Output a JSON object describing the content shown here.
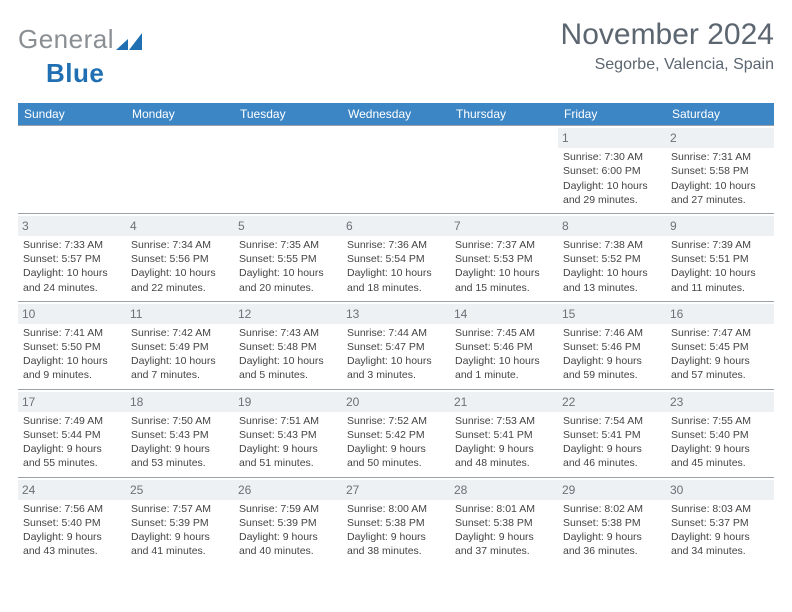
{
  "brand": {
    "part1": "General",
    "part2": "Blue",
    "color_gray": "#8a8f94",
    "color_blue": "#1f6fb2"
  },
  "title": {
    "month": "November 2024",
    "location": "Segorbe, Valencia, Spain"
  },
  "theme": {
    "header_bg": "#3d86c6",
    "header_text": "#ffffff",
    "daynum_bg": "#eef1f4",
    "rule": "#9aa3ab",
    "text": "#444444"
  },
  "weekdays": [
    "Sunday",
    "Monday",
    "Tuesday",
    "Wednesday",
    "Thursday",
    "Friday",
    "Saturday"
  ],
  "weeks": [
    [
      {
        "blank": true
      },
      {
        "blank": true
      },
      {
        "blank": true
      },
      {
        "blank": true
      },
      {
        "blank": true
      },
      {
        "n": "1",
        "sr": "Sunrise: 7:30 AM",
        "ss": "Sunset: 6:00 PM",
        "d1": "Daylight: 10 hours",
        "d2": "and 29 minutes."
      },
      {
        "n": "2",
        "sr": "Sunrise: 7:31 AM",
        "ss": "Sunset: 5:58 PM",
        "d1": "Daylight: 10 hours",
        "d2": "and 27 minutes."
      }
    ],
    [
      {
        "n": "3",
        "sr": "Sunrise: 7:33 AM",
        "ss": "Sunset: 5:57 PM",
        "d1": "Daylight: 10 hours",
        "d2": "and 24 minutes."
      },
      {
        "n": "4",
        "sr": "Sunrise: 7:34 AM",
        "ss": "Sunset: 5:56 PM",
        "d1": "Daylight: 10 hours",
        "d2": "and 22 minutes."
      },
      {
        "n": "5",
        "sr": "Sunrise: 7:35 AM",
        "ss": "Sunset: 5:55 PM",
        "d1": "Daylight: 10 hours",
        "d2": "and 20 minutes."
      },
      {
        "n": "6",
        "sr": "Sunrise: 7:36 AM",
        "ss": "Sunset: 5:54 PM",
        "d1": "Daylight: 10 hours",
        "d2": "and 18 minutes."
      },
      {
        "n": "7",
        "sr": "Sunrise: 7:37 AM",
        "ss": "Sunset: 5:53 PM",
        "d1": "Daylight: 10 hours",
        "d2": "and 15 minutes."
      },
      {
        "n": "8",
        "sr": "Sunrise: 7:38 AM",
        "ss": "Sunset: 5:52 PM",
        "d1": "Daylight: 10 hours",
        "d2": "and 13 minutes."
      },
      {
        "n": "9",
        "sr": "Sunrise: 7:39 AM",
        "ss": "Sunset: 5:51 PM",
        "d1": "Daylight: 10 hours",
        "d2": "and 11 minutes."
      }
    ],
    [
      {
        "n": "10",
        "sr": "Sunrise: 7:41 AM",
        "ss": "Sunset: 5:50 PM",
        "d1": "Daylight: 10 hours",
        "d2": "and 9 minutes."
      },
      {
        "n": "11",
        "sr": "Sunrise: 7:42 AM",
        "ss": "Sunset: 5:49 PM",
        "d1": "Daylight: 10 hours",
        "d2": "and 7 minutes."
      },
      {
        "n": "12",
        "sr": "Sunrise: 7:43 AM",
        "ss": "Sunset: 5:48 PM",
        "d1": "Daylight: 10 hours",
        "d2": "and 5 minutes."
      },
      {
        "n": "13",
        "sr": "Sunrise: 7:44 AM",
        "ss": "Sunset: 5:47 PM",
        "d1": "Daylight: 10 hours",
        "d2": "and 3 minutes."
      },
      {
        "n": "14",
        "sr": "Sunrise: 7:45 AM",
        "ss": "Sunset: 5:46 PM",
        "d1": "Daylight: 10 hours",
        "d2": "and 1 minute."
      },
      {
        "n": "15",
        "sr": "Sunrise: 7:46 AM",
        "ss": "Sunset: 5:46 PM",
        "d1": "Daylight: 9 hours",
        "d2": "and 59 minutes."
      },
      {
        "n": "16",
        "sr": "Sunrise: 7:47 AM",
        "ss": "Sunset: 5:45 PM",
        "d1": "Daylight: 9 hours",
        "d2": "and 57 minutes."
      }
    ],
    [
      {
        "n": "17",
        "sr": "Sunrise: 7:49 AM",
        "ss": "Sunset: 5:44 PM",
        "d1": "Daylight: 9 hours",
        "d2": "and 55 minutes."
      },
      {
        "n": "18",
        "sr": "Sunrise: 7:50 AM",
        "ss": "Sunset: 5:43 PM",
        "d1": "Daylight: 9 hours",
        "d2": "and 53 minutes."
      },
      {
        "n": "19",
        "sr": "Sunrise: 7:51 AM",
        "ss": "Sunset: 5:43 PM",
        "d1": "Daylight: 9 hours",
        "d2": "and 51 minutes."
      },
      {
        "n": "20",
        "sr": "Sunrise: 7:52 AM",
        "ss": "Sunset: 5:42 PM",
        "d1": "Daylight: 9 hours",
        "d2": "and 50 minutes."
      },
      {
        "n": "21",
        "sr": "Sunrise: 7:53 AM",
        "ss": "Sunset: 5:41 PM",
        "d1": "Daylight: 9 hours",
        "d2": "and 48 minutes."
      },
      {
        "n": "22",
        "sr": "Sunrise: 7:54 AM",
        "ss": "Sunset: 5:41 PM",
        "d1": "Daylight: 9 hours",
        "d2": "and 46 minutes."
      },
      {
        "n": "23",
        "sr": "Sunrise: 7:55 AM",
        "ss": "Sunset: 5:40 PM",
        "d1": "Daylight: 9 hours",
        "d2": "and 45 minutes."
      }
    ],
    [
      {
        "n": "24",
        "sr": "Sunrise: 7:56 AM",
        "ss": "Sunset: 5:40 PM",
        "d1": "Daylight: 9 hours",
        "d2": "and 43 minutes."
      },
      {
        "n": "25",
        "sr": "Sunrise: 7:57 AM",
        "ss": "Sunset: 5:39 PM",
        "d1": "Daylight: 9 hours",
        "d2": "and 41 minutes."
      },
      {
        "n": "26",
        "sr": "Sunrise: 7:59 AM",
        "ss": "Sunset: 5:39 PM",
        "d1": "Daylight: 9 hours",
        "d2": "and 40 minutes."
      },
      {
        "n": "27",
        "sr": "Sunrise: 8:00 AM",
        "ss": "Sunset: 5:38 PM",
        "d1": "Daylight: 9 hours",
        "d2": "and 38 minutes."
      },
      {
        "n": "28",
        "sr": "Sunrise: 8:01 AM",
        "ss": "Sunset: 5:38 PM",
        "d1": "Daylight: 9 hours",
        "d2": "and 37 minutes."
      },
      {
        "n": "29",
        "sr": "Sunrise: 8:02 AM",
        "ss": "Sunset: 5:38 PM",
        "d1": "Daylight: 9 hours",
        "d2": "and 36 minutes."
      },
      {
        "n": "30",
        "sr": "Sunrise: 8:03 AM",
        "ss": "Sunset: 5:37 PM",
        "d1": "Daylight: 9 hours",
        "d2": "and 34 minutes."
      }
    ]
  ]
}
